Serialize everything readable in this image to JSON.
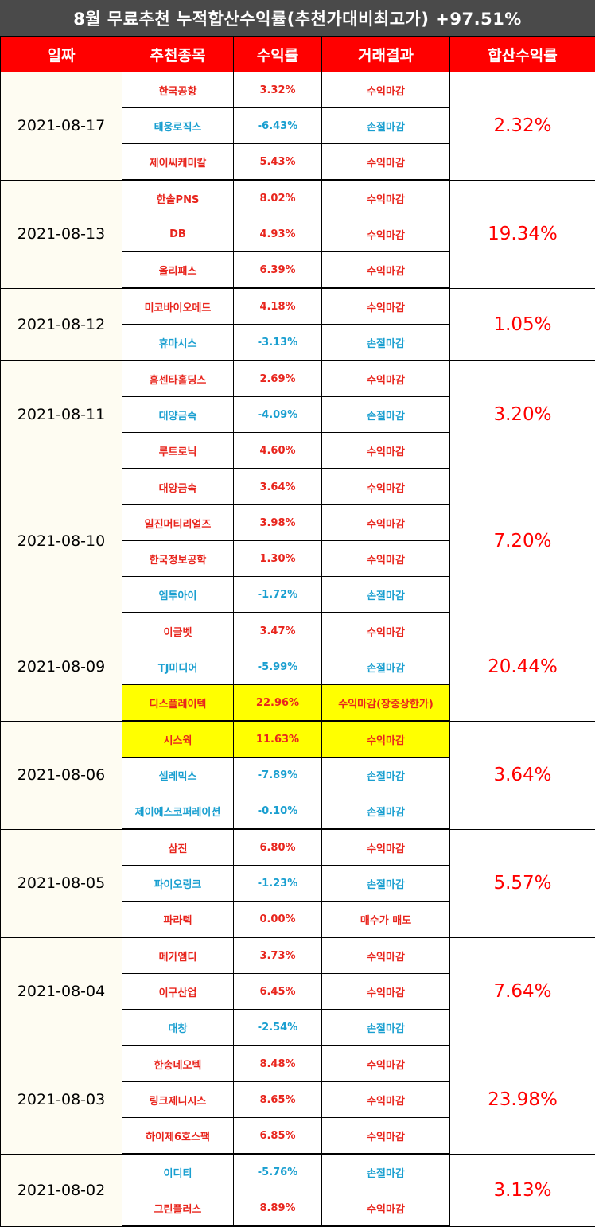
{
  "title": "8월 무료추천 누적합산수익률(추천가대비최고가) +97.51%",
  "headers": [
    "일짜",
    "추천종목",
    "수익률",
    "거래결과",
    "합산수익률"
  ],
  "groups": [
    {
      "date": "2021-08-17",
      "total": "2.32%",
      "rows": [
        {
          "stock": "한국공항",
          "rate": "3.32%",
          "result": "수익마감",
          "type": "profit"
        },
        {
          "stock": "태웅로직스",
          "rate": "-6.43%",
          "result": "손절마감",
          "type": "loss"
        },
        {
          "stock": "제이씨케미칼",
          "rate": "5.43%",
          "result": "수익마감",
          "type": "profit"
        }
      ]
    },
    {
      "date": "2021-08-13",
      "total": "19.34%",
      "rows": [
        {
          "stock": "한솔PNS",
          "rate": "8.02%",
          "result": "수익마감",
          "type": "profit"
        },
        {
          "stock": "DB",
          "rate": "4.93%",
          "result": "수익마감",
          "type": "profit"
        },
        {
          "stock": "올리패스",
          "rate": "6.39%",
          "result": "수익마감",
          "type": "profit"
        }
      ]
    },
    {
      "date": "2021-08-12",
      "total": "1.05%",
      "rows": [
        {
          "stock": "미코바이오메드",
          "rate": "4.18%",
          "result": "수익마감",
          "type": "profit"
        },
        {
          "stock": "휴마시스",
          "rate": "-3.13%",
          "result": "손절마감",
          "type": "loss"
        }
      ]
    },
    {
      "date": "2021-08-11",
      "total": "3.20%",
      "rows": [
        {
          "stock": "홈센타홀딩스",
          "rate": "2.69%",
          "result": "수익마감",
          "type": "profit"
        },
        {
          "stock": "대양금속",
          "rate": "-4.09%",
          "result": "손절마감",
          "type": "loss"
        },
        {
          "stock": "루트로닉",
          "rate": "4.60%",
          "result": "수익마감",
          "type": "profit"
        }
      ]
    },
    {
      "date": "2021-08-10",
      "total": "7.20%",
      "rows": [
        {
          "stock": "대양금속",
          "rate": "3.64%",
          "result": "수익마감",
          "type": "profit"
        },
        {
          "stock": "일진머티리얼즈",
          "rate": "3.98%",
          "result": "수익마감",
          "type": "profit"
        },
        {
          "stock": "한국정보공학",
          "rate": "1.30%",
          "result": "수익마감",
          "type": "profit"
        },
        {
          "stock": "엠투아이",
          "rate": "-1.72%",
          "result": "손절마감",
          "type": "loss"
        }
      ]
    },
    {
      "date": "2021-08-09",
      "total": "20.44%",
      "rows": [
        {
          "stock": "이글벳",
          "rate": "3.47%",
          "result": "수익마감",
          "type": "profit"
        },
        {
          "stock": "TJ미디어",
          "rate": "-5.99%",
          "result": "손절마감",
          "type": "loss"
        },
        {
          "stock": "디스플레이텍",
          "rate": "22.96%",
          "result": "수익마감(장중상한가)",
          "type": "profit",
          "highlight": true
        }
      ]
    },
    {
      "date": "2021-08-06",
      "total": "3.64%",
      "rows": [
        {
          "stock": "시스웍",
          "rate": "11.63%",
          "result": "수익마감",
          "type": "profit",
          "highlight": true
        },
        {
          "stock": "셀레믹스",
          "rate": "-7.89%",
          "result": "손절마감",
          "type": "loss"
        },
        {
          "stock": "제이에스코퍼레이션",
          "rate": "-0.10%",
          "result": "손절마감",
          "type": "loss"
        }
      ]
    },
    {
      "date": "2021-08-05",
      "total": "5.57%",
      "rows": [
        {
          "stock": "삼진",
          "rate": "6.80%",
          "result": "수익마감",
          "type": "profit"
        },
        {
          "stock": "파이오링크",
          "rate": "-1.23%",
          "result": "손절마감",
          "type": "loss"
        },
        {
          "stock": "파라텍",
          "rate": "0.00%",
          "result": "매수가 매도",
          "type": "profit"
        }
      ]
    },
    {
      "date": "2021-08-04",
      "total": "7.64%",
      "rows": [
        {
          "stock": "메가엠디",
          "rate": "3.73%",
          "result": "수익마감",
          "type": "profit"
        },
        {
          "stock": "이구산업",
          "rate": "6.45%",
          "result": "수익마감",
          "type": "profit"
        },
        {
          "stock": "대창",
          "rate": "-2.54%",
          "result": "손절마감",
          "type": "loss"
        }
      ]
    },
    {
      "date": "2021-08-03",
      "total": "23.98%",
      "rows": [
        {
          "stock": "한송네오텍",
          "rate": "8.48%",
          "result": "수익마감",
          "type": "profit"
        },
        {
          "stock": "링크제니시스",
          "rate": "8.65%",
          "result": "수익마감",
          "type": "profit"
        },
        {
          "stock": "하이제6호스팩",
          "rate": "6.85%",
          "result": "수익마감",
          "type": "profit"
        }
      ]
    },
    {
      "date": "2021-08-02",
      "total": "3.13%",
      "rows": [
        {
          "stock": "이디티",
          "rate": "-5.76%",
          "result": "손절마감",
          "type": "loss"
        },
        {
          "stock": "그린플러스",
          "rate": "8.89%",
          "result": "수익마감",
          "type": "profit"
        }
      ]
    }
  ],
  "colors": {
    "profit": "#e8251d",
    "loss": "#1a9fd0",
    "header_bg": "#ff0000",
    "title_bg": "#4a4a4a",
    "highlight": "#ffff00"
  }
}
